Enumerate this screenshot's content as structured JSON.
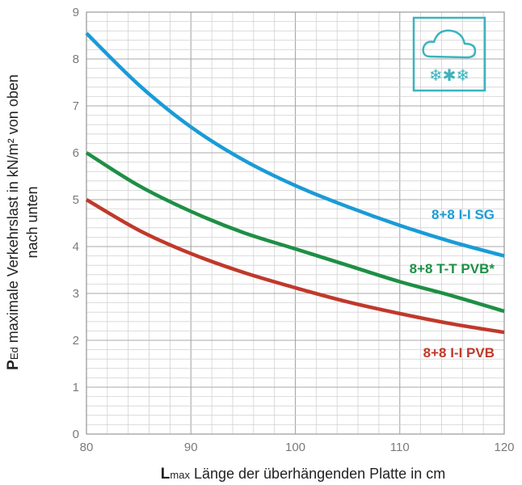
{
  "chart_data": {
    "type": "line",
    "xlabel_bold": "L",
    "xlabel_sub": "max",
    "xlabel_rest": " Länge der überhängenden Platte in cm",
    "ylabel_bold": "P",
    "ylabel_sub": "Ed",
    "ylabel_rest": " maximale Verkehrslast in kN/m² von oben",
    "ylabel_line2": "nach unten",
    "xlim": [
      80,
      120
    ],
    "ylim": [
      0,
      9
    ],
    "xticks": [
      "80",
      "90",
      "100",
      "110",
      "120"
    ],
    "yticks": [
      "0",
      "1",
      "2",
      "3",
      "4",
      "5",
      "6",
      "7",
      "8",
      "9"
    ],
    "grid": true,
    "series": [
      {
        "name": "8+8 I-I SG",
        "color": "#1a9bd7",
        "x": [
          80,
          85,
          90,
          95,
          100,
          105,
          110,
          115,
          120
        ],
        "y": [
          8.55,
          7.45,
          6.55,
          5.85,
          5.3,
          4.85,
          4.45,
          4.1,
          3.8
        ]
      },
      {
        "name": "8+8 T-T PVB*",
        "color": "#1e8f45",
        "x": [
          80,
          85,
          90,
          95,
          100,
          105,
          110,
          115,
          120
        ],
        "y": [
          6.0,
          5.3,
          4.75,
          4.3,
          3.95,
          3.6,
          3.25,
          2.95,
          2.62
        ]
      },
      {
        "name": "8+8 I-I PVB",
        "color": "#c0392b",
        "x": [
          80,
          85,
          90,
          95,
          100,
          105,
          110,
          115,
          120
        ],
        "y": [
          5.0,
          4.35,
          3.85,
          3.45,
          3.12,
          2.82,
          2.57,
          2.35,
          2.17
        ]
      }
    ]
  },
  "weather_icon": {
    "name": "cloud-snow-icon",
    "color": "#3bb3be"
  }
}
